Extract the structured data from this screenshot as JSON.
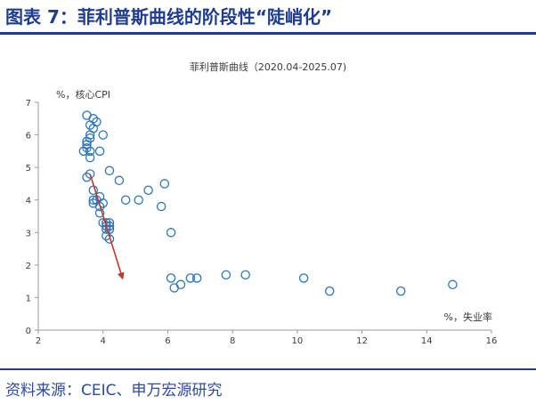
{
  "header": {
    "title": "图表 7：菲利普斯曲线的阶段性“陡峭化”"
  },
  "footer": {
    "source": "资料来源：CEIC、申万宏源研究"
  },
  "colors": {
    "brand": "#1f3d8f",
    "marker": "#2e75b6",
    "arrow": "#c0392b",
    "axis": "#9a9a9a"
  },
  "chart_data": {
    "type": "scatter",
    "title": "菲利普斯曲线（2020.04-2025.07)",
    "xlabel": "%，失业率",
    "ylabel": "%，核心CPI",
    "xlim": [
      2,
      16
    ],
    "ylim": [
      0,
      7
    ],
    "xticks": [
      "2",
      "4",
      "6",
      "8",
      "10",
      "12",
      "14",
      "16"
    ],
    "yticks": [
      "0",
      "1",
      "2",
      "3",
      "4",
      "5",
      "6",
      "7"
    ],
    "grid": false,
    "series": [
      {
        "points": [
          [
            3.5,
            6.6
          ],
          [
            3.7,
            6.5
          ],
          [
            3.8,
            6.4
          ],
          [
            3.6,
            6.3
          ],
          [
            3.7,
            6.2
          ],
          [
            4.0,
            6.0
          ],
          [
            3.6,
            6.0
          ],
          [
            3.6,
            5.9
          ],
          [
            3.5,
            5.8
          ],
          [
            3.5,
            5.7
          ],
          [
            3.5,
            5.6
          ],
          [
            3.6,
            5.5
          ],
          [
            3.4,
            5.5
          ],
          [
            3.9,
            5.5
          ],
          [
            3.6,
            5.3
          ],
          [
            4.2,
            4.9
          ],
          [
            3.6,
            4.8
          ],
          [
            3.5,
            4.7
          ],
          [
            4.5,
            4.6
          ],
          [
            5.9,
            4.5
          ],
          [
            3.7,
            4.3
          ],
          [
            5.4,
            4.3
          ],
          [
            3.9,
            4.1
          ],
          [
            3.7,
            4.0
          ],
          [
            3.8,
            4.0
          ],
          [
            4.7,
            4.0
          ],
          [
            5.1,
            4.0
          ],
          [
            3.7,
            3.9
          ],
          [
            4.0,
            3.9
          ],
          [
            3.9,
            3.8
          ],
          [
            5.8,
            3.8
          ],
          [
            3.9,
            3.6
          ],
          [
            4.0,
            3.3
          ],
          [
            4.1,
            3.3
          ],
          [
            4.2,
            3.3
          ],
          [
            4.1,
            3.2
          ],
          [
            4.2,
            3.2
          ],
          [
            4.1,
            3.1
          ],
          [
            4.2,
            3.1
          ],
          [
            6.1,
            3.0
          ],
          [
            4.1,
            2.9
          ],
          [
            4.2,
            2.8
          ],
          [
            6.1,
            1.6
          ],
          [
            6.7,
            1.6
          ],
          [
            6.9,
            1.6
          ],
          [
            7.8,
            1.7
          ],
          [
            8.4,
            1.7
          ],
          [
            10.2,
            1.6
          ],
          [
            6.4,
            1.4
          ],
          [
            6.2,
            1.3
          ],
          [
            11.0,
            1.2
          ],
          [
            13.2,
            1.2
          ],
          [
            14.8,
            1.4
          ]
        ]
      }
    ],
    "annotations": [
      {
        "type": "arrow",
        "from": [
          3.6,
          4.8
        ],
        "to": [
          4.6,
          1.6
        ]
      }
    ]
  }
}
